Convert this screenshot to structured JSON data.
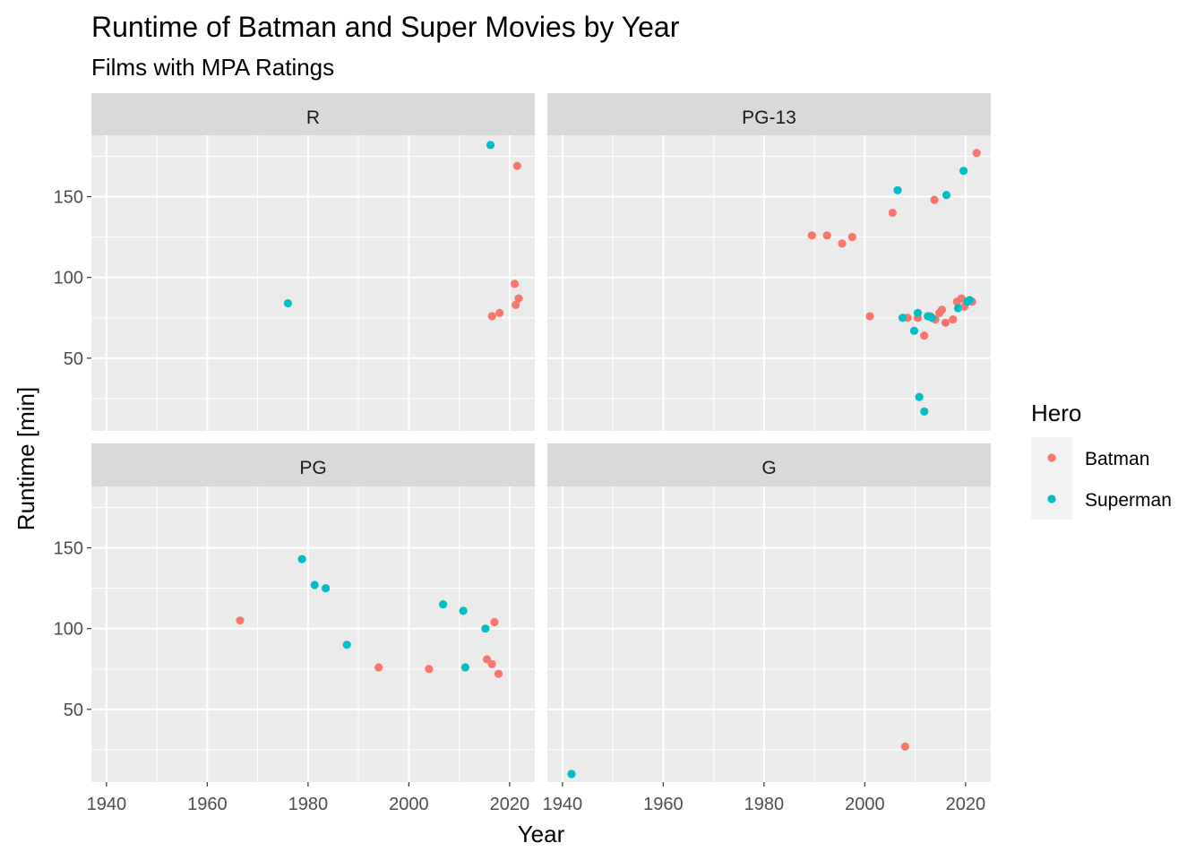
{
  "chart_data": {
    "type": "scatter",
    "title": "Runtime of Batman and Super Movies by Year",
    "subtitle": "Films with MPA Ratings",
    "xlabel": "Year",
    "ylabel": "Runtime [min]",
    "xlim": [
      1937,
      2025
    ],
    "ylim": [
      5,
      188
    ],
    "x_ticks": [
      1940,
      1960,
      1980,
      2000,
      2020
    ],
    "y_ticks": [
      50,
      100,
      150
    ],
    "grid": true,
    "legend": {
      "title": "Hero",
      "position": "right",
      "entries": [
        {
          "name": "Batman",
          "color": "#F8766D"
        },
        {
          "name": "Superman",
          "color": "#00BFC4"
        }
      ]
    },
    "facets": [
      {
        "label": "R",
        "series": [
          {
            "name": "Batman",
            "points": [
              [
                2016.5,
                76
              ],
              [
                2018,
                78
              ],
              [
                2021,
                96
              ],
              [
                2021.5,
                169
              ],
              [
                2021.2,
                83
              ],
              [
                2021.8,
                87
              ]
            ]
          },
          {
            "name": "Superman",
            "points": [
              [
                1976,
                84
              ],
              [
                2016.2,
                182
              ]
            ]
          }
        ]
      },
      {
        "label": "PG-13",
        "series": [
          {
            "name": "Batman",
            "points": [
              [
                1989.5,
                126
              ],
              [
                1992.5,
                126
              ],
              [
                1995.5,
                121
              ],
              [
                1997.5,
                125
              ],
              [
                2001,
                76
              ],
              [
                2005.5,
                140
              ],
              [
                2008.5,
                75
              ],
              [
                2010.5,
                75
              ],
              [
                2011.8,
                64
              ],
              [
                2013,
                76
              ],
              [
                2013.8,
                148
              ],
              [
                2014,
                74
              ],
              [
                2014.8,
                78
              ],
              [
                2015.3,
                80
              ],
              [
                2016,
                72
              ],
              [
                2017.5,
                74
              ],
              [
                2018.3,
                85
              ],
              [
                2019.2,
                87
              ],
              [
                2019.8,
                82
              ],
              [
                2020.5,
                85
              ],
              [
                2021.3,
                85
              ],
              [
                2022.2,
                177
              ]
            ]
          },
          {
            "name": "Superman",
            "points": [
              [
                2006.5,
                154
              ],
              [
                2007.5,
                75
              ],
              [
                2009.8,
                67
              ],
              [
                2010.5,
                78
              ],
              [
                2010.8,
                26
              ],
              [
                2011.8,
                17
              ],
              [
                2012.5,
                76
              ],
              [
                2013.3,
                75
              ],
              [
                2016.2,
                151
              ],
              [
                2018.5,
                81
              ],
              [
                2019.6,
                166
              ],
              [
                2020.3,
                85
              ],
              [
                2020.8,
                86
              ]
            ]
          }
        ]
      },
      {
        "label": "PG",
        "series": [
          {
            "name": "Batman",
            "points": [
              [
                1966.5,
                105
              ],
              [
                1994,
                76
              ],
              [
                2004,
                75
              ],
              [
                2015.5,
                81
              ],
              [
                2016.5,
                78
              ],
              [
                2017,
                104
              ],
              [
                2017.8,
                72
              ]
            ]
          },
          {
            "name": "Superman",
            "points": [
              [
                1978.8,
                143
              ],
              [
                1981.3,
                127
              ],
              [
                1983.5,
                125
              ],
              [
                1987.7,
                90
              ],
              [
                2006.8,
                115
              ],
              [
                2010.8,
                111
              ],
              [
                2011.2,
                76
              ],
              [
                2015.2,
                100
              ]
            ]
          }
        ]
      },
      {
        "label": "G",
        "series": [
          {
            "name": "Batman",
            "points": [
              [
                2008,
                27
              ]
            ]
          },
          {
            "name": "Superman",
            "points": [
              [
                1941.8,
                10
              ]
            ]
          }
        ]
      }
    ]
  }
}
